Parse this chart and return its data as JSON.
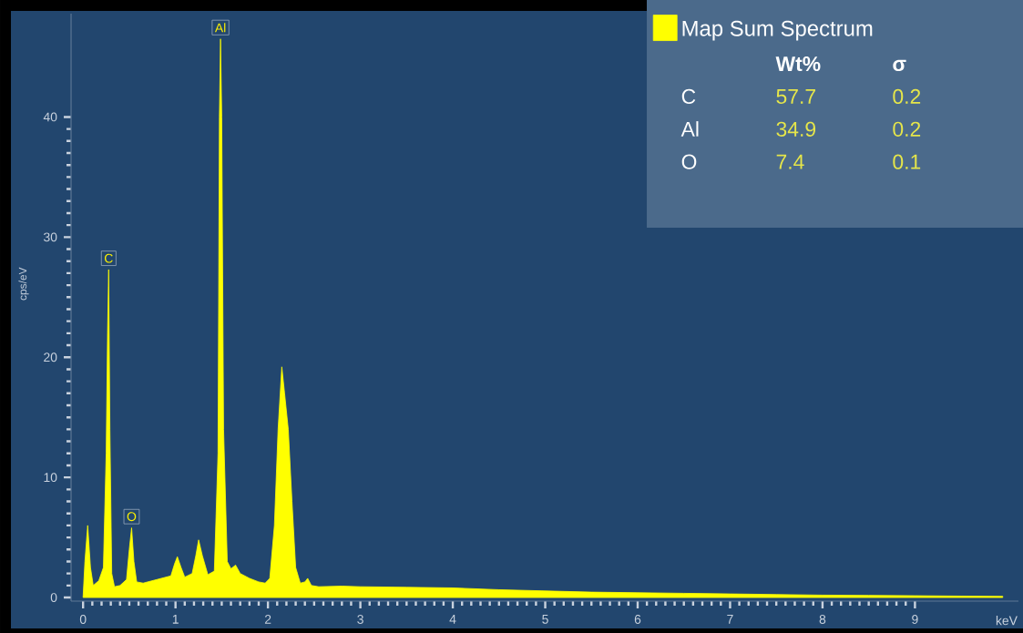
{
  "chart_data": {
    "type": "area",
    "xlabel": "keV",
    "ylabel": "cps/eV",
    "xlim": [
      -0.13,
      10.12
    ],
    "ylim": [
      -0.3,
      48.6
    ],
    "xticks": [
      0,
      1,
      2,
      3,
      4,
      5,
      6,
      7,
      8,
      9
    ],
    "yticks": [
      0,
      10,
      20,
      30,
      40
    ],
    "legend": "top right",
    "series": [
      {
        "name": "Map Sum Spectrum",
        "color": "#ffff00",
        "x": [
          0,
          0.02,
          0.05,
          0.08,
          0.11,
          0.17,
          0.22,
          0.25,
          0.265,
          0.277,
          0.29,
          0.31,
          0.34,
          0.4,
          0.47,
          0.5,
          0.525,
          0.55,
          0.58,
          0.65,
          0.8,
          0.95,
          0.99,
          1.02,
          1.06,
          1.1,
          1.18,
          1.22,
          1.25,
          1.29,
          1.35,
          1.42,
          1.46,
          1.475,
          1.487,
          1.5,
          1.52,
          1.56,
          1.6,
          1.65,
          1.7,
          1.8,
          1.9,
          1.97,
          2.02,
          2.07,
          2.11,
          2.15,
          2.18,
          2.22,
          2.26,
          2.3,
          2.35,
          2.4,
          2.43,
          2.47,
          2.55,
          2.8,
          3.0,
          3.5,
          4.0,
          4.5,
          5.0,
          5.5,
          6.0,
          6.5,
          7.0,
          7.5,
          8.0,
          8.5,
          9.0,
          9.5,
          9.95
        ],
        "values": [
          0,
          3,
          6,
          2.5,
          1.0,
          1.4,
          2.5,
          12,
          22,
          27.3,
          14,
          2,
          0.9,
          1.0,
          1.5,
          4,
          5.8,
          3,
          1.3,
          1.2,
          1.5,
          1.8,
          2.8,
          3.4,
          2.5,
          1.7,
          2.0,
          3.5,
          4.8,
          3.5,
          1.9,
          2.2,
          12,
          40,
          46.5,
          40,
          14,
          3,
          2.4,
          2.7,
          2.0,
          1.6,
          1.3,
          1.2,
          1.6,
          6,
          14,
          19.2,
          17,
          14,
          8,
          2.5,
          1.2,
          1.3,
          1.6,
          1.0,
          0.9,
          0.95,
          0.9,
          0.85,
          0.8,
          0.65,
          0.55,
          0.45,
          0.4,
          0.35,
          0.3,
          0.25,
          0.2,
          0.18,
          0.15,
          0.12,
          0.1
        ]
      }
    ],
    "annotations": [
      {
        "text": "C",
        "x": 0.277,
        "y": 27.3
      },
      {
        "text": "O",
        "x": 0.525,
        "y": 5.8
      },
      {
        "text": "Al",
        "x": 1.487,
        "y": 46.5
      },
      "Wt%",
      "σ",
      "C",
      "57.7",
      "0.2",
      "Al",
      "34.9",
      "0.2",
      "O",
      "7.4",
      "0.1"
    ]
  }
}
